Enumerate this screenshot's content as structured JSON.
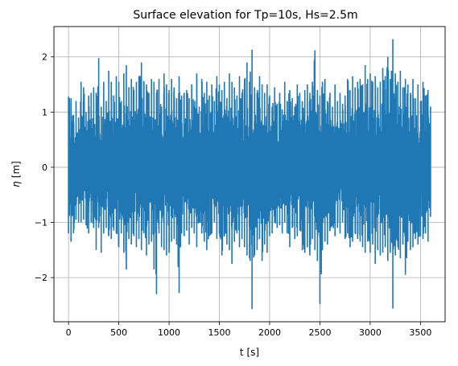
{
  "chart_data": {
    "type": "line",
    "title": "Surface elevation for Tp=10s, Hs=2.5m",
    "xlabel": "t [s]",
    "ylabel_symbol": "η",
    "ylabel_unit": "[m]",
    "xlim": [
      -145,
      3745
    ],
    "ylim": [
      -2.8,
      2.55
    ],
    "xticks": [
      0,
      500,
      1000,
      1500,
      2000,
      2500,
      3000,
      3500
    ],
    "yticks": [
      -2,
      -1,
      0,
      1,
      2
    ],
    "grid": true,
    "legend": "none",
    "series": [
      {
        "color": "#1f77b4",
        "x_range": [
          0,
          3600
        ],
        "envelope": [
          [
            0,
            1.28,
            -1.2
          ],
          [
            25,
            1.25,
            -1.35
          ],
          [
            50,
            0.95,
            -1.2
          ],
          [
            75,
            1.2,
            -0.95
          ],
          [
            100,
            0.9,
            -1.0
          ],
          [
            125,
            1.55,
            -1.0
          ],
          [
            150,
            1.45,
            -0.95
          ],
          [
            175,
            1.0,
            -1.05
          ],
          [
            200,
            1.3,
            -1.2
          ],
          [
            225,
            1.35,
            -1.0
          ],
          [
            250,
            1.45,
            -1.1
          ],
          [
            275,
            1.35,
            -1.5
          ],
          [
            300,
            1.98,
            -1.1
          ],
          [
            325,
            1.1,
            -1.55
          ],
          [
            350,
            1.55,
            -1.2
          ],
          [
            375,
            1.2,
            -1.1
          ],
          [
            400,
            1.75,
            -1.25
          ],
          [
            425,
            1.55,
            -1.3
          ],
          [
            450,
            1.3,
            -1.15
          ],
          [
            475,
            1.65,
            -1.2
          ],
          [
            500,
            1.55,
            -1.45
          ],
          [
            525,
            1.2,
            -1.2
          ],
          [
            550,
            1.7,
            -1.55
          ],
          [
            575,
            1.85,
            -1.85
          ],
          [
            600,
            1.45,
            -1.3
          ],
          [
            625,
            1.6,
            -1.4
          ],
          [
            650,
            1.4,
            -1.25
          ],
          [
            675,
            1.55,
            -1.45
          ],
          [
            700,
            1.65,
            -1.3
          ],
          [
            725,
            1.9,
            -1.5
          ],
          [
            750,
            1.55,
            -1.2
          ],
          [
            775,
            1.5,
            -1.6
          ],
          [
            800,
            1.35,
            -1.4
          ],
          [
            825,
            1.6,
            -1.35
          ],
          [
            850,
            1.55,
            -1.85
          ],
          [
            875,
            1.35,
            -2.3
          ],
          [
            900,
            1.6,
            -1.2
          ],
          [
            925,
            1.1,
            -1.45
          ],
          [
            950,
            1.7,
            -1.5
          ],
          [
            975,
            1.5,
            -1.6
          ],
          [
            1000,
            1.4,
            -1.55
          ],
          [
            1025,
            1.6,
            -1.35
          ],
          [
            1050,
            1.45,
            -1.3
          ],
          [
            1075,
            1.25,
            -1.4
          ],
          [
            1100,
            1.65,
            -2.28
          ],
          [
            1125,
            1.3,
            -1.2
          ],
          [
            1150,
            1.35,
            -1.25
          ],
          [
            1175,
            1.4,
            -1.15
          ],
          [
            1200,
            1.25,
            -1.4
          ],
          [
            1225,
            1.5,
            -1.1
          ],
          [
            1250,
            1.1,
            -1.2
          ],
          [
            1275,
            1.7,
            -1.45
          ],
          [
            1300,
            1.1,
            -1.0
          ],
          [
            1325,
            1.6,
            -1.2
          ],
          [
            1350,
            1.35,
            -1.35
          ],
          [
            1375,
            1.55,
            -1.5
          ],
          [
            1400,
            1.3,
            -1.25
          ],
          [
            1425,
            1.5,
            -1.2
          ],
          [
            1450,
            1.2,
            -1.0
          ],
          [
            1475,
            1.65,
            -1.3
          ],
          [
            1500,
            1.5,
            -1.2
          ],
          [
            1525,
            1.4,
            -1.6
          ],
          [
            1550,
            1.55,
            -1.25
          ],
          [
            1575,
            1.25,
            -1.4
          ],
          [
            1600,
            1.7,
            -1.5
          ],
          [
            1625,
            1.55,
            -1.75
          ],
          [
            1650,
            1.45,
            -1.35
          ],
          [
            1675,
            1.3,
            -1.2
          ],
          [
            1700,
            1.65,
            -1.45
          ],
          [
            1725,
            1.35,
            -1.3
          ],
          [
            1750,
            1.6,
            -1.45
          ],
          [
            1775,
            1.9,
            -1.6
          ],
          [
            1800,
            1.55,
            -1.65
          ],
          [
            1825,
            2.13,
            -2.57
          ],
          [
            1850,
            1.45,
            -1.6
          ],
          [
            1875,
            1.35,
            -1.5
          ],
          [
            1900,
            1.65,
            -1.3
          ],
          [
            1925,
            1.5,
            -1.7
          ],
          [
            1950,
            1.35,
            -1.4
          ],
          [
            1975,
            1.5,
            -1.55
          ],
          [
            2000,
            1.3,
            -1.25
          ],
          [
            2025,
            1.1,
            -1.2
          ],
          [
            2050,
            1.45,
            -1.0
          ],
          [
            2075,
            1.15,
            -1.1
          ],
          [
            2100,
            1.35,
            -1.05
          ],
          [
            2125,
            1.05,
            -1.2
          ],
          [
            2150,
            1.55,
            -1.0
          ],
          [
            2175,
            1.2,
            -1.2
          ],
          [
            2200,
            1.4,
            -1.45
          ],
          [
            2225,
            1.25,
            -1.1
          ],
          [
            2250,
            1.1,
            -1.3
          ],
          [
            2275,
            1.5,
            -1.25
          ],
          [
            2300,
            1.35,
            -1.15
          ],
          [
            2325,
            1.2,
            -1.5
          ],
          [
            2350,
            1.4,
            -1.55
          ],
          [
            2375,
            1.5,
            -1.45
          ],
          [
            2400,
            1.35,
            -1.6
          ],
          [
            2425,
            1.55,
            -1.3
          ],
          [
            2450,
            2.12,
            -1.5
          ],
          [
            2475,
            1.4,
            -1.7
          ],
          [
            2500,
            1.3,
            -2.48
          ],
          [
            2525,
            1.55,
            -1.5
          ],
          [
            2550,
            1.6,
            -1.35
          ],
          [
            2575,
            1.2,
            -1.4
          ],
          [
            2600,
            1.35,
            -1.15
          ],
          [
            2625,
            1.1,
            -1.05
          ],
          [
            2650,
            1.5,
            -1.25
          ],
          [
            2675,
            1.2,
            -1.1
          ],
          [
            2700,
            1.35,
            -1.2
          ],
          [
            2725,
            1.15,
            -1.0
          ],
          [
            2750,
            1.3,
            -1.3
          ],
          [
            2775,
            1.6,
            -1.2
          ],
          [
            2800,
            1.4,
            -1.45
          ],
          [
            2825,
            1.65,
            -1.35
          ],
          [
            2850,
            1.45,
            -1.2
          ],
          [
            2875,
            1.55,
            -1.3
          ],
          [
            2900,
            1.6,
            -1.35
          ],
          [
            2925,
            1.5,
            -1.45
          ],
          [
            2950,
            1.85,
            -1.55
          ],
          [
            2975,
            1.6,
            -1.35
          ],
          [
            3000,
            1.7,
            -1.55
          ],
          [
            3025,
            1.55,
            -1.4
          ],
          [
            3050,
            1.65,
            -1.75
          ],
          [
            3075,
            1.45,
            -1.5
          ],
          [
            3100,
            1.55,
            -1.6
          ],
          [
            3125,
            1.8,
            -1.55
          ],
          [
            3150,
            1.65,
            -1.45
          ],
          [
            3175,
            2.0,
            -1.7
          ],
          [
            3200,
            1.6,
            -1.55
          ],
          [
            3225,
            2.32,
            -2.56
          ],
          [
            3250,
            1.7,
            -1.6
          ],
          [
            3275,
            1.55,
            -1.45
          ],
          [
            3300,
            1.75,
            -1.65
          ],
          [
            3325,
            1.45,
            -1.4
          ],
          [
            3350,
            1.6,
            -1.95
          ],
          [
            3375,
            1.5,
            -1.35
          ],
          [
            3400,
            1.35,
            -1.5
          ],
          [
            3425,
            1.6,
            -1.45
          ],
          [
            3450,
            1.25,
            -1.3
          ],
          [
            3475,
            1.5,
            -1.4
          ],
          [
            3500,
            1.2,
            -1.25
          ],
          [
            3525,
            1.55,
            -1.3
          ],
          [
            3550,
            1.3,
            -1.2
          ],
          [
            3575,
            1.4,
            -1.35
          ],
          [
            3600,
            1.1,
            -0.9
          ]
        ]
      }
    ]
  }
}
